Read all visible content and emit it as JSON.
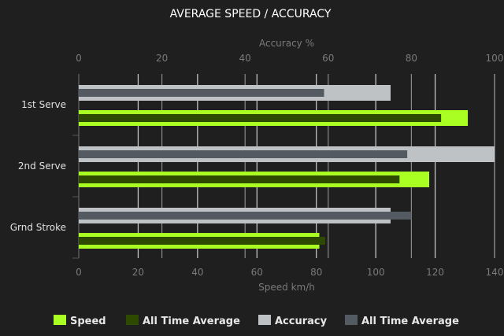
{
  "chart_data": {
    "type": "bar",
    "orientation": "horizontal",
    "title": "AVERAGE SPEED / ACCURACY",
    "categories": [
      "1st Serve",
      "2nd Serve",
      "Grnd Stroke"
    ],
    "x_axis_bottom": {
      "label": "Speed km/h",
      "range": [
        0,
        140
      ],
      "ticks": [
        0,
        20,
        40,
        60,
        80,
        100,
        120,
        140
      ]
    },
    "x_axis_top": {
      "label": "Accuracy %",
      "range": [
        0,
        100
      ],
      "ticks": [
        0,
        20,
        40,
        60,
        80,
        100
      ]
    },
    "grid": true,
    "legend_position": "bottom",
    "series": [
      {
        "name": "Speed",
        "axis": "speed",
        "color": "#aaff22",
        "values": [
          131,
          118,
          81
        ]
      },
      {
        "name": "All Time Average",
        "axis": "speed",
        "color": "#2e4a00",
        "values": [
          122,
          108,
          83
        ]
      },
      {
        "name": "Accuracy",
        "axis": "accuracy",
        "color": "#bec2c4",
        "values": [
          75,
          100,
          75
        ]
      },
      {
        "name": "All Time Average",
        "axis": "accuracy",
        "color": "#545a61",
        "values": [
          59,
          79,
          80
        ]
      }
    ]
  }
}
